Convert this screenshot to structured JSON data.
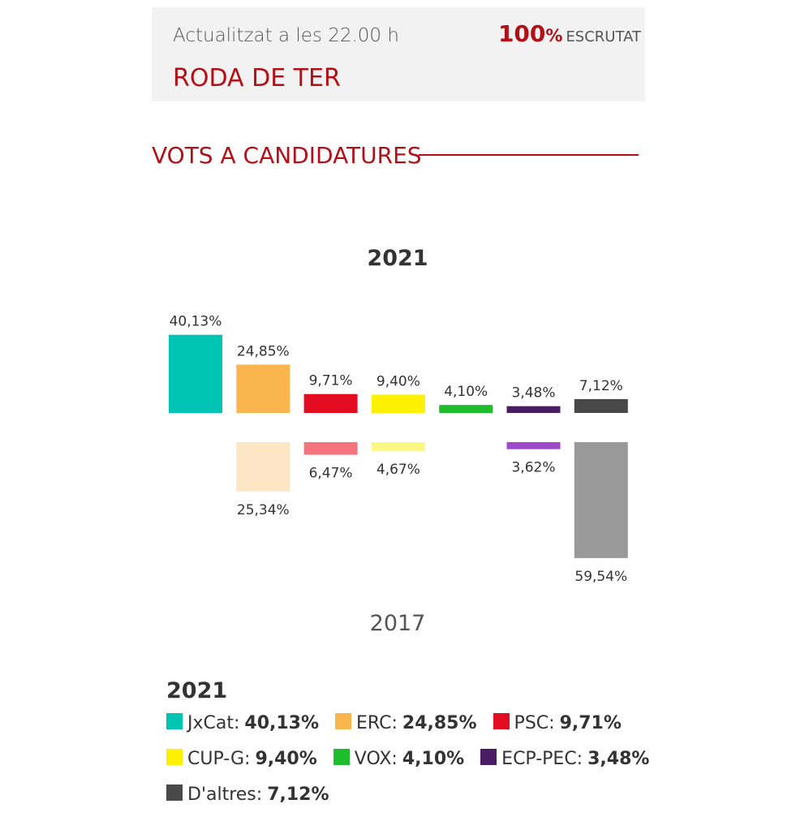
{
  "header": {
    "updated": "Actualitzat a les 22.00 h",
    "scrutiny_pct": "100",
    "scrutiny_unit": "%",
    "scrutiny_label": "ESCRUTAT",
    "municipality": "RODA DE TER"
  },
  "section": {
    "title": "VOTS A CANDIDATURES"
  },
  "colors": {
    "accent": "#b20f17",
    "header_bg": "#f2f2f2"
  },
  "chart_data": {
    "type": "bar",
    "title_top": "2021",
    "title_bottom": "2017",
    "series": [
      {
        "name": "2021",
        "values": [
          40.13,
          24.85,
          9.71,
          9.4,
          4.1,
          3.48,
          7.12
        ],
        "labels": [
          "40,13%",
          "24,85%",
          "9,71%",
          "9,40%",
          "4,10%",
          "3,48%",
          "7,12%"
        ],
        "colors": [
          "#00c4b3",
          "#fbb54e",
          "#e30b1f",
          "#fdf000",
          "#1fbd2c",
          "#4a1c63",
          "#484848"
        ]
      },
      {
        "name": "2017",
        "values": [
          null,
          25.34,
          6.47,
          4.67,
          null,
          3.62,
          59.54
        ],
        "labels": [
          "",
          "25,34%",
          "6,47%",
          "4,67%",
          "",
          "3,62%",
          "59,54%"
        ],
        "colors": [
          "#80e2d9",
          "#fde6c5",
          "#f4737c",
          "#fdf783",
          "#8ede95",
          "#9c49cc",
          "#999999"
        ]
      }
    ],
    "categories": [
      "JxCat",
      "ERC",
      "PSC",
      "CUP-G",
      "VOX",
      "ECP-PEC",
      "D'altres"
    ],
    "grid": false
  },
  "legend": {
    "year": "2021",
    "items": [
      {
        "label": "JxCat:",
        "value": "40,13%",
        "color": "#00c4b3"
      },
      {
        "label": "ERC:",
        "value": "24,85%",
        "color": "#fbb54e"
      },
      {
        "label": "PSC:",
        "value": "9,71%",
        "color": "#e30b1f"
      },
      {
        "label": "CUP-G:",
        "value": "9,40%",
        "color": "#fdf000"
      },
      {
        "label": "VOX:",
        "value": "4,10%",
        "color": "#1fbd2c"
      },
      {
        "label": "ECP-PEC:",
        "value": "3,48%",
        "color": "#4a1c63"
      },
      {
        "label": "D'altres:",
        "value": "7,12%",
        "color": "#484848"
      }
    ]
  }
}
